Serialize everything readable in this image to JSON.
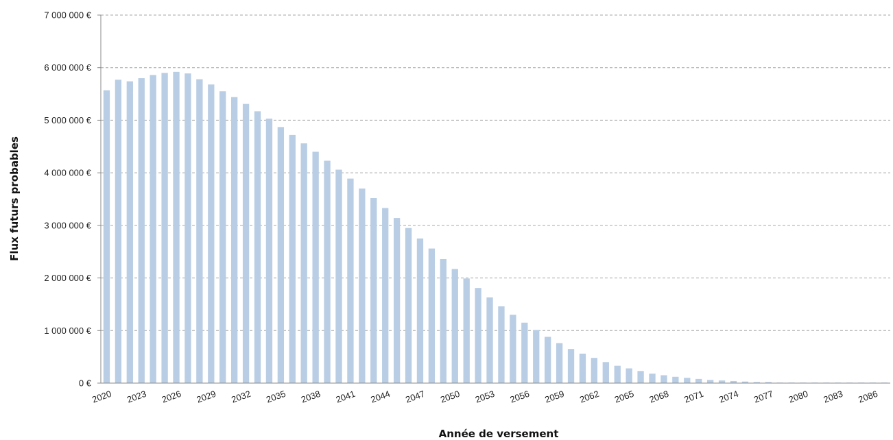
{
  "chart_data": {
    "type": "bar",
    "xlabel": "Année de versement",
    "ylabel": "Flux futurs probables",
    "ylim": [
      0,
      7000000
    ],
    "yticks": [
      0,
      1000000,
      2000000,
      3000000,
      4000000,
      5000000,
      6000000,
      7000000
    ],
    "ytick_labels": [
      "0 €",
      "1 000 000 €",
      "2 000 000 €",
      "3 000 000 €",
      "4 000 000 €",
      "5 000 000 €",
      "6 000 000 €",
      "7 000 000 €"
    ],
    "xtick_labels": [
      "2020",
      "2023",
      "2026",
      "2029",
      "2032",
      "2035",
      "2038",
      "2041",
      "2044",
      "2047",
      "2050",
      "2053",
      "2056",
      "2059",
      "2062",
      "2065",
      "2068",
      "2071",
      "2074",
      "2077",
      "2080",
      "2083",
      "2086"
    ],
    "grid": "horizontal dashed",
    "bar_color": "#b9cde4",
    "categories": [
      "2020",
      "2021",
      "2022",
      "2023",
      "2024",
      "2025",
      "2026",
      "2027",
      "2028",
      "2029",
      "2030",
      "2031",
      "2032",
      "2033",
      "2034",
      "2035",
      "2036",
      "2037",
      "2038",
      "2039",
      "2040",
      "2041",
      "2042",
      "2043",
      "2044",
      "2045",
      "2046",
      "2047",
      "2048",
      "2049",
      "2050",
      "2051",
      "2052",
      "2053",
      "2054",
      "2055",
      "2056",
      "2057",
      "2058",
      "2059",
      "2060",
      "2061",
      "2062",
      "2063",
      "2064",
      "2065",
      "2066",
      "2067",
      "2068",
      "2069",
      "2070",
      "2071",
      "2072",
      "2073",
      "2074",
      "2075",
      "2076",
      "2077",
      "2078",
      "2079",
      "2080",
      "2081",
      "2082",
      "2083",
      "2084",
      "2085",
      "2086",
      "2087"
    ],
    "values": [
      5570000,
      5770000,
      5740000,
      5800000,
      5860000,
      5900000,
      5920000,
      5890000,
      5780000,
      5680000,
      5550000,
      5440000,
      5310000,
      5170000,
      5030000,
      4870000,
      4720000,
      4560000,
      4400000,
      4230000,
      4060000,
      3890000,
      3700000,
      3520000,
      3330000,
      3140000,
      2950000,
      2750000,
      2560000,
      2360000,
      2170000,
      1990000,
      1810000,
      1630000,
      1460000,
      1300000,
      1150000,
      1010000,
      880000,
      760000,
      650000,
      560000,
      480000,
      400000,
      330000,
      280000,
      230000,
      180000,
      150000,
      120000,
      100000,
      80000,
      60000,
      50000,
      40000,
      30000,
      20000,
      20000,
      10000,
      10000,
      10000,
      10000,
      10000,
      10000,
      10000,
      10000,
      10000,
      10000
    ]
  }
}
